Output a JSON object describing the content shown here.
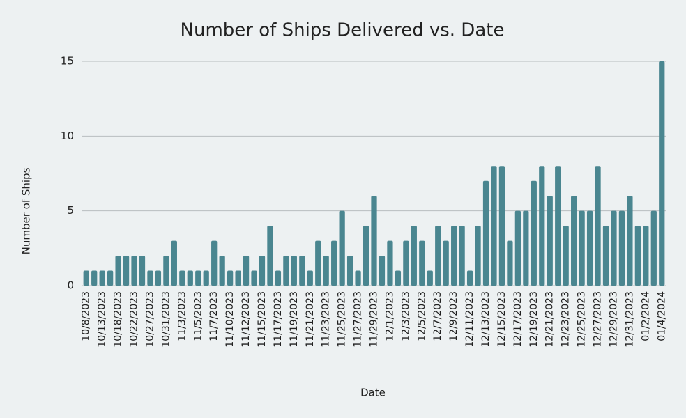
{
  "chart_data": {
    "type": "bar",
    "title": "Number of Ships Delivered vs. Date",
    "x_label": "Date",
    "y_label": "Number of Ships",
    "categories": [
      "10/8/2023",
      null,
      "10/13/2023",
      null,
      "10/18/2023",
      null,
      "10/22/2023",
      null,
      "10/27/2023",
      null,
      "10/31/2023",
      null,
      "11/3/2023",
      null,
      "11/5/2023",
      null,
      "11/7/2023",
      null,
      "11/10/2023",
      null,
      "11/12/2023",
      null,
      "11/15/2023",
      null,
      "11/17/2023",
      null,
      "11/19/2023",
      null,
      "11/21/2023",
      null,
      "11/23/2023",
      null,
      "11/25/2023",
      null,
      "11/27/2023",
      null,
      "11/29/2023",
      null,
      "12/1/2023",
      null,
      "12/3/2023",
      null,
      "12/5/2023",
      null,
      "12/7/2023",
      null,
      "12/9/2023",
      null,
      "12/11/2023",
      null,
      "12/13/2023",
      null,
      "12/15/2023",
      null,
      "12/17/2023",
      null,
      "12/19/2023",
      null,
      "12/21/2023",
      null,
      "12/23/2023",
      null,
      "12/25/2023",
      null,
      "12/27/2023",
      null,
      "12/29/2023",
      null,
      "12/31/2023",
      null,
      "01/2/2024",
      null,
      "01/4/2024"
    ],
    "values": [
      1,
      1,
      1,
      1,
      2,
      2,
      2,
      2,
      1,
      1,
      2,
      3,
      1,
      1,
      1,
      1,
      3,
      2,
      1,
      1,
      2,
      1,
      2,
      4,
      1,
      2,
      2,
      2,
      1,
      3,
      2,
      3,
      5,
      2,
      1,
      4,
      6,
      2,
      3,
      1,
      3,
      4,
      3,
      1,
      4,
      3,
      4,
      4,
      1,
      4,
      7,
      8,
      8,
      3,
      5,
      5,
      7,
      8,
      6,
      8,
      4,
      6,
      5,
      5,
      8,
      4,
      5,
      5,
      6,
      4,
      4,
      5,
      15
    ],
    "color": "#4a8690",
    "ylim": [
      0,
      15
    ],
    "yticks": [
      0,
      5,
      10,
      15
    ],
    "grid": true
  }
}
